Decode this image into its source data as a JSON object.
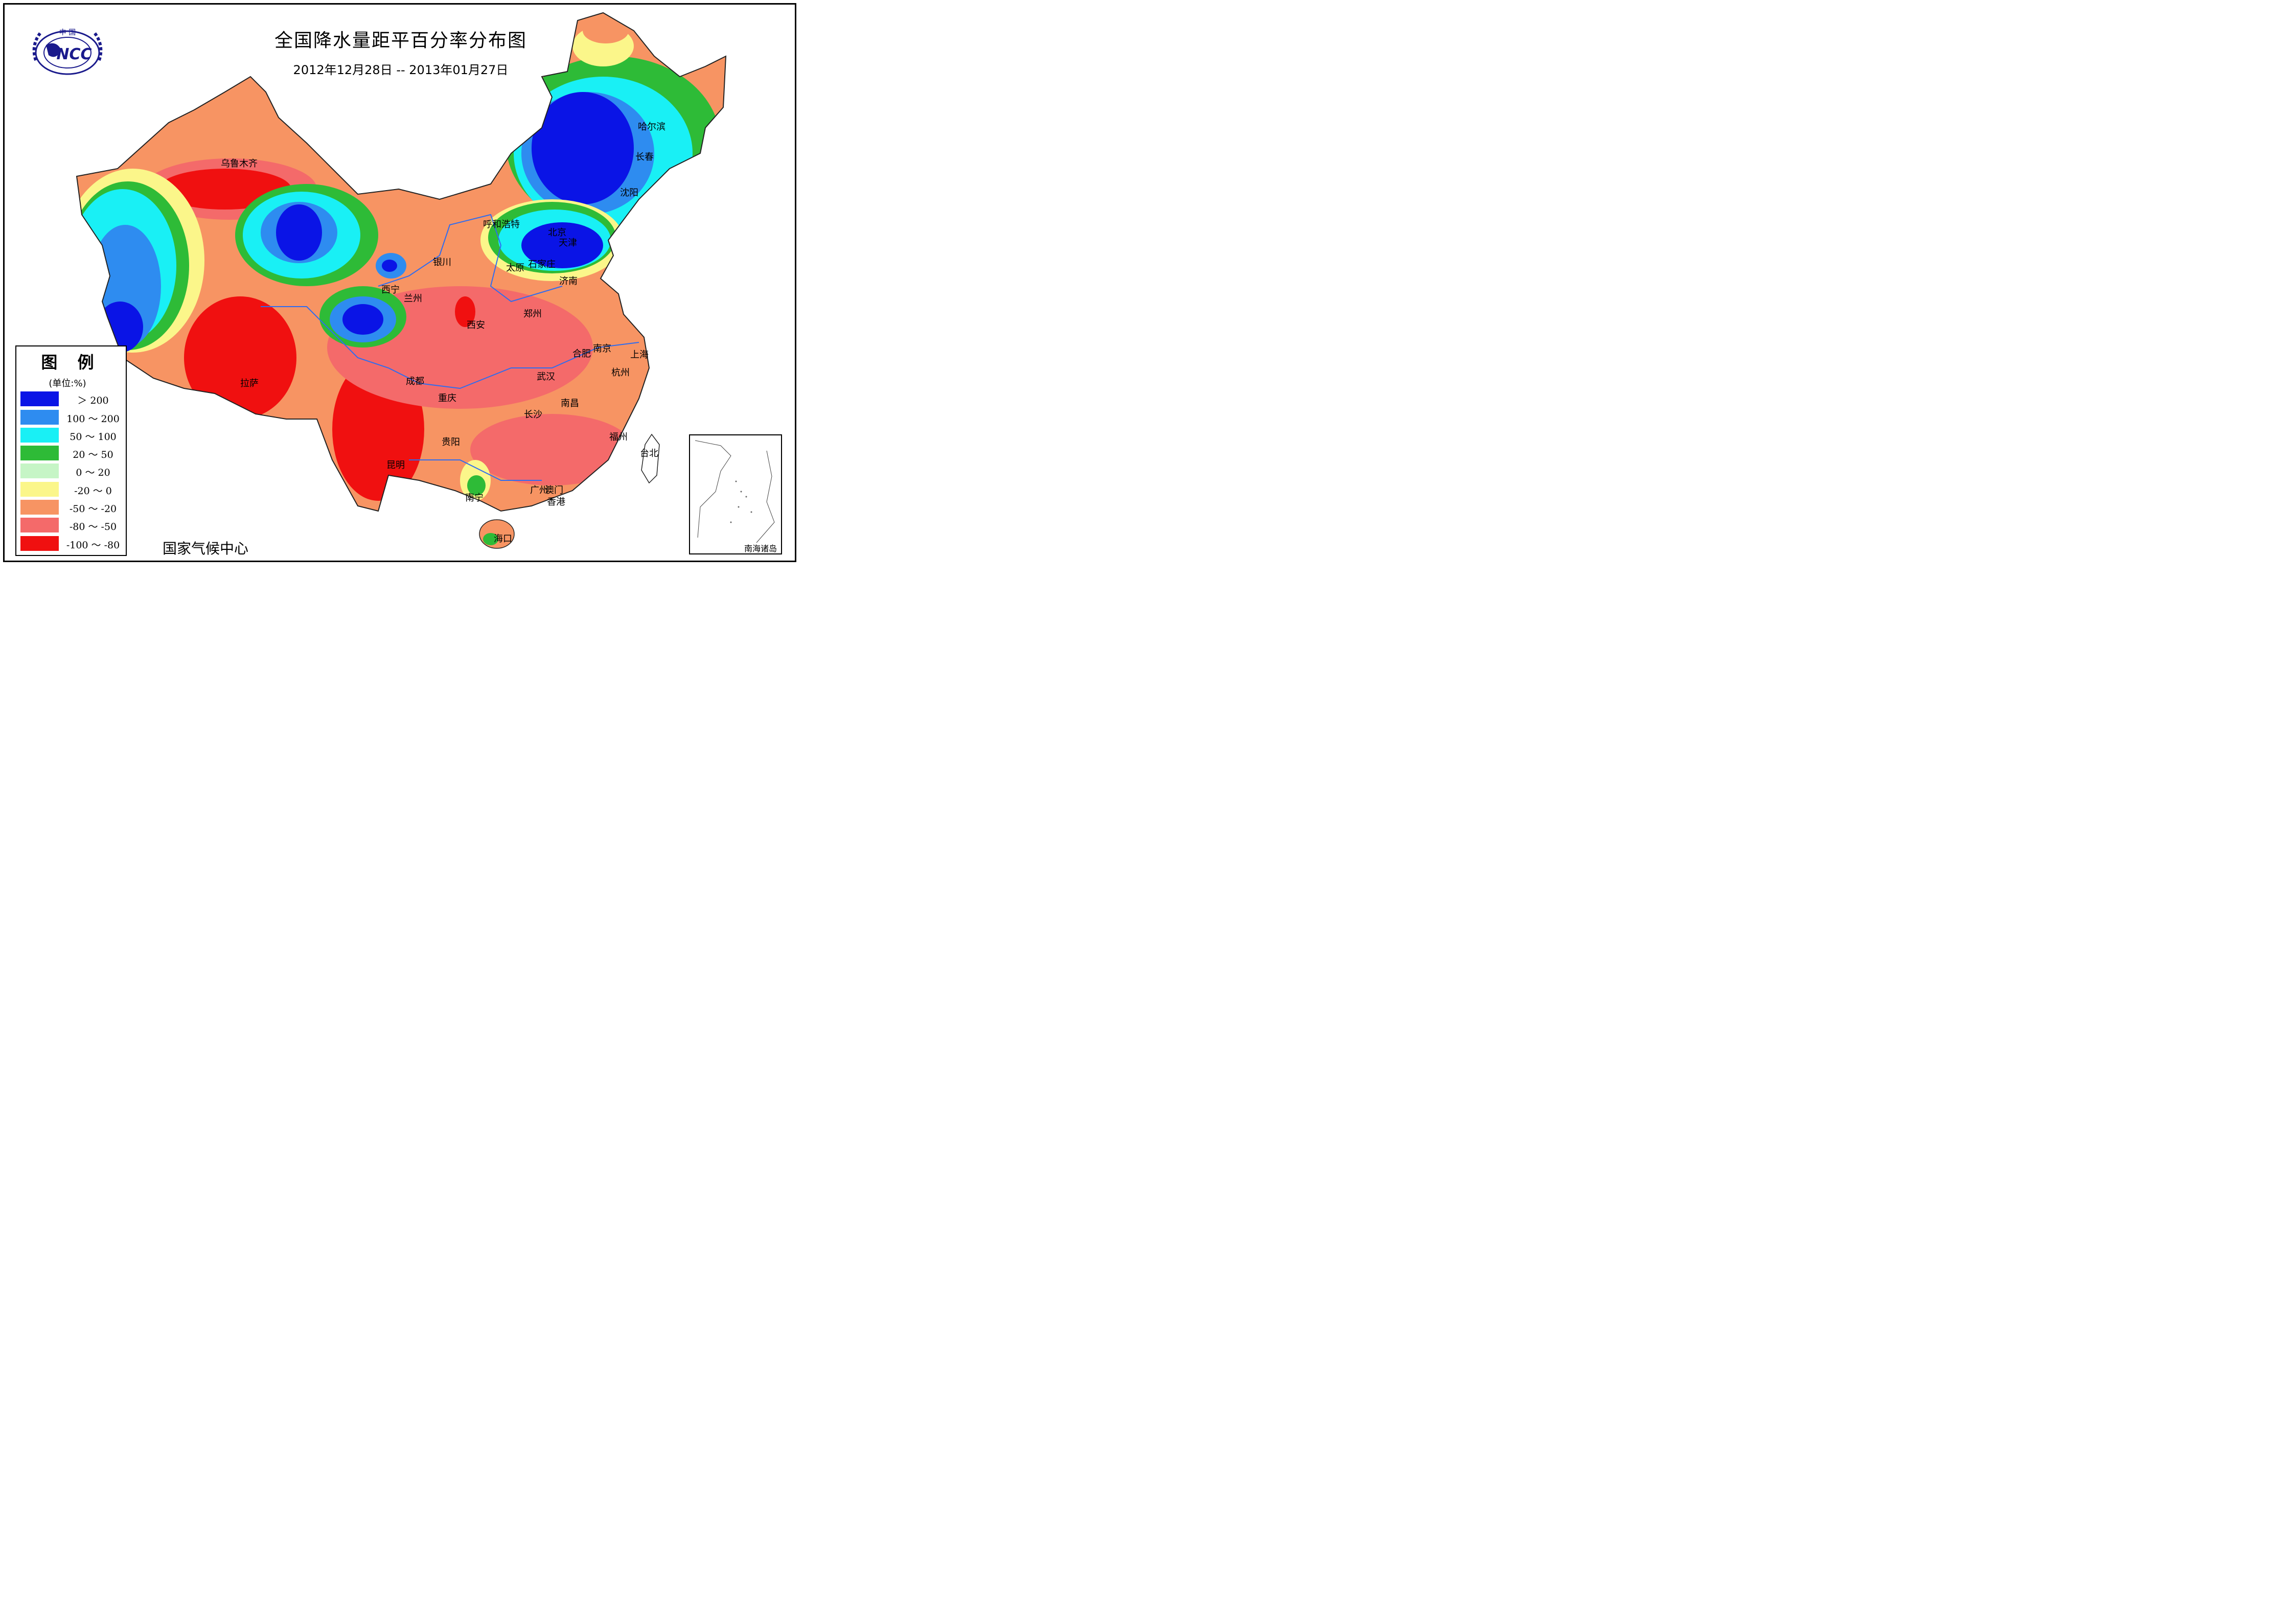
{
  "title": "全国降水量距平百分率分布图",
  "subtitle": "2012年12月28日 -- 2013年01月27日",
  "logo": {
    "top_text": "中 国",
    "main_text": "NCC"
  },
  "legend": {
    "title": "图 例",
    "unit": "(单位:%)",
    "items": [
      {
        "label": "＞ 200",
        "color": "#0a14e6"
      },
      {
        "label": "100 ～ 200",
        "color": "#2e8cf0"
      },
      {
        "label": "50 ～ 100",
        "color": "#19f0f5"
      },
      {
        "label": "20 ～ 50",
        "color": "#2ebb37"
      },
      {
        "label": "0 ～ 20",
        "color": "#c6f5c6"
      },
      {
        "label": "-20 ～ 0",
        "color": "#fbf68a"
      },
      {
        "label": "-50 ～ -20",
        "color": "#f79463"
      },
      {
        "label": "-80 ～ -50",
        "color": "#f46a6a"
      },
      {
        "label": "-100 ～ -80",
        "color": "#f01010"
      }
    ]
  },
  "cities": [
    "乌鲁木齐",
    "哈尔滨",
    "长春",
    "沈阳",
    "呼和浩特",
    "北京",
    "天津",
    "银川",
    "太原",
    "石家庄",
    "济南",
    "西宁",
    "兰州",
    "郑州",
    "西安",
    "合肥",
    "南京",
    "上海",
    "杭州",
    "武汉",
    "成都",
    "拉萨",
    "重庆",
    "南昌",
    "长沙",
    "福州",
    "台北",
    "贵阳",
    "昆明",
    "南宁",
    "广州",
    "澳门",
    "香港",
    "海口"
  ],
  "inset_label": "南海诸岛",
  "footer": "国家气候中心"
}
